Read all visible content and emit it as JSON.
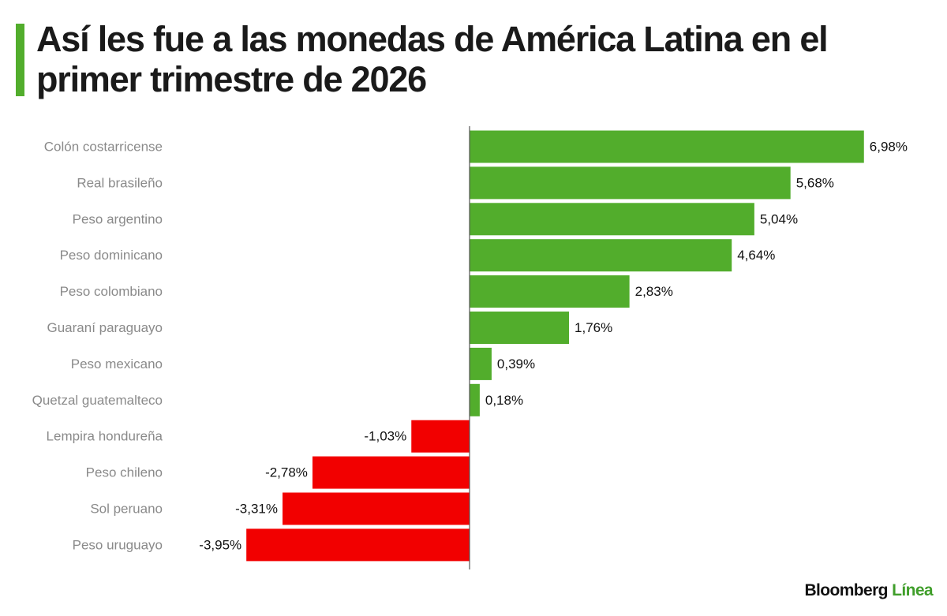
{
  "title": "Así les fue a las monedas de América Latina en el primer trimestre de 2026",
  "logo": {
    "brand": "Bloomberg",
    "accent": "Línea"
  },
  "colors": {
    "positive": "#52ad2c",
    "negative": "#f20000",
    "title_bar": "#52ad2c"
  },
  "chart_data": {
    "type": "bar",
    "orientation": "horizontal",
    "title": "Así les fue a las monedas de América Latina en el primer trimestre de 2026",
    "xlabel": "",
    "ylabel": "",
    "xlim": [
      -3.95,
      6.98
    ],
    "grid": false,
    "categories": [
      "Colón costarricense",
      "Real brasileño",
      "Peso argentino",
      "Peso dominicano",
      "Peso colombiano",
      "Guaraní paraguayo",
      "Peso mexicano",
      "Quetzal guatemalteco",
      "Lempira hondureña",
      "Peso chileno",
      "Sol peruano",
      "Peso uruguayo"
    ],
    "values": [
      6.98,
      5.68,
      5.04,
      4.64,
      2.83,
      1.76,
      0.39,
      0.18,
      -1.03,
      -2.78,
      -3.31,
      -3.95
    ],
    "value_labels": [
      "6,98%",
      "5,68%",
      "5,04%",
      "4,64%",
      "2,83%",
      "1,76%",
      "0,39%",
      "0,18%",
      "-1,03%",
      "-2,78%",
      "-3,31%",
      "-3,95%"
    ]
  }
}
